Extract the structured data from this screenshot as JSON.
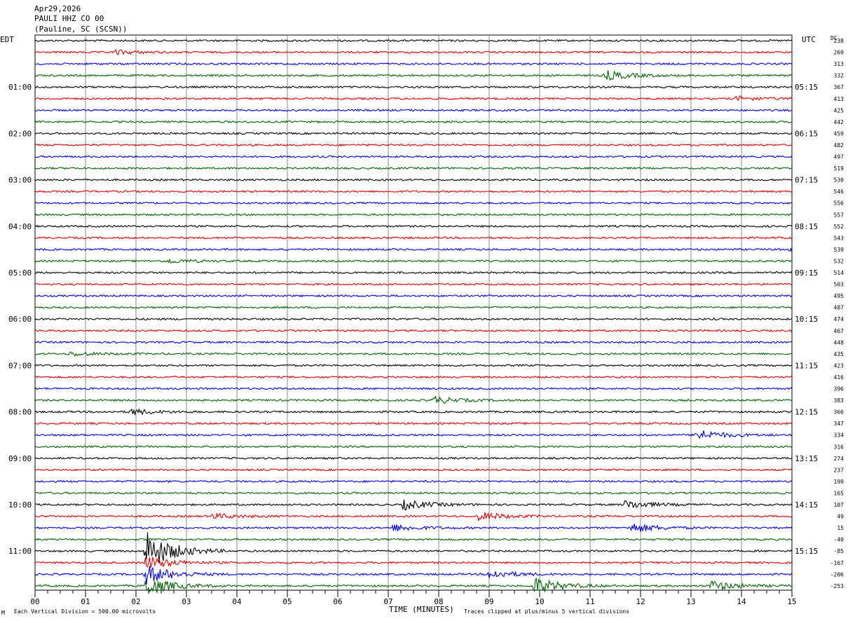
{
  "header": {
    "date": "Apr29,2026",
    "station": "PAULI HHZ CO 00",
    "location": "(Pauline, SC (SCSN))"
  },
  "left_tz": "EDT",
  "right_tz": "UTC",
  "dc_label": "DC",
  "footer": {
    "scale_note": "Each Vertical Division =  500.00 microvolts",
    "clip_note": "Traces clipped at plus/minus 5 vertical divisions",
    "corner_mark": "M"
  },
  "colors": {
    "trace_cycle": [
      "#000000",
      "#e00000",
      "#0000e0",
      "#006400"
    ],
    "grid": "#888888"
  },
  "chart_data": {
    "type": "helicorder",
    "xlabel": "TIME (MINUTES)",
    "xlim": [
      0,
      15
    ],
    "x_ticks": [
      "00",
      "01",
      "02",
      "03",
      "04",
      "05",
      "06",
      "07",
      "08",
      "09",
      "10",
      "11",
      "12",
      "13",
      "14",
      "15"
    ],
    "minutes_per_line": 15,
    "edt_labels": [
      "01:00",
      "02:00",
      "03:00",
      "04:00",
      "05:00",
      "06:00",
      "07:00",
      "08:00",
      "09:00",
      "10:00",
      "11:00"
    ],
    "utc_labels": [
      "05:15",
      "06:15",
      "07:15",
      "08:15",
      "09:15",
      "10:15",
      "11:15",
      "12:15",
      "13:15",
      "14:15",
      "15:15"
    ],
    "dc_offsets": [
      238,
      269,
      313,
      332,
      367,
      413,
      425,
      442,
      459,
      482,
      497,
      519,
      530,
      546,
      556,
      557,
      552,
      543,
      539,
      532,
      514,
      503,
      495,
      487,
      474,
      467,
      448,
      435,
      423,
      416,
      396,
      383,
      366,
      347,
      334,
      316,
      274,
      237,
      199,
      165,
      107,
      49,
      15,
      -40,
      -85,
      -167,
      -206,
      -253
    ],
    "events": [
      {
        "trace": 1,
        "minute": 1.6,
        "amp": 3
      },
      {
        "trace": 3,
        "minute": 11.3,
        "amp": 7
      },
      {
        "trace": 5,
        "minute": 13.9,
        "amp": 3
      },
      {
        "trace": 18,
        "minute": 14.9,
        "amp": 4
      },
      {
        "trace": 19,
        "minute": 2.6,
        "amp": 3
      },
      {
        "trace": 27,
        "minute": 0.7,
        "amp": 3
      },
      {
        "trace": 31,
        "minute": 7.9,
        "amp": 5
      },
      {
        "trace": 32,
        "minute": 1.9,
        "amp": 4
      },
      {
        "trace": 34,
        "minute": 13.1,
        "amp": 8
      },
      {
        "trace": 40,
        "minute": 7.3,
        "amp": 7
      },
      {
        "trace": 40,
        "minute": 11.7,
        "amp": 6
      },
      {
        "trace": 41,
        "minute": 8.8,
        "amp": 6
      },
      {
        "trace": 41,
        "minute": 3.5,
        "amp": 4
      },
      {
        "trace": 42,
        "minute": 11.8,
        "amp": 7
      },
      {
        "trace": 42,
        "minute": 7.1,
        "amp": 5
      },
      {
        "trace": 44,
        "minute": 2.2,
        "amp": 30
      },
      {
        "trace": 45,
        "minute": 2.2,
        "amp": 10
      },
      {
        "trace": 46,
        "minute": 2.2,
        "amp": 14
      },
      {
        "trace": 46,
        "minute": 9.0,
        "amp": 6
      },
      {
        "trace": 47,
        "minute": 2.2,
        "amp": 14
      },
      {
        "trace": 47,
        "minute": 9.9,
        "amp": 12
      },
      {
        "trace": 47,
        "minute": 13.4,
        "amp": 7
      }
    ]
  }
}
